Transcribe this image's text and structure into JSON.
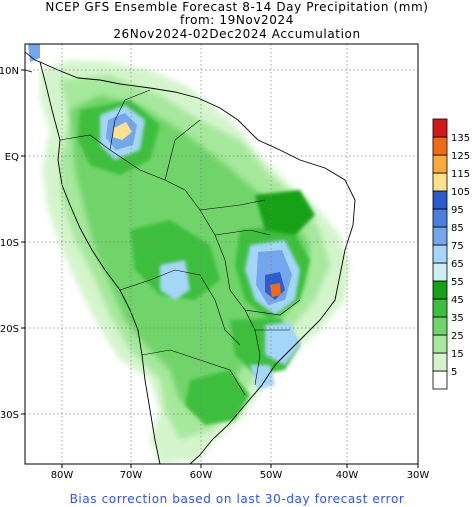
{
  "title": {
    "line1": "NCEP GFS Ensemble Forecast 8-14 Day Precipitation (mm)",
    "line2": "from: 19Nov2024",
    "line3": "26Nov2024-02Dec2024 Accumulation"
  },
  "axes": {
    "lon_labels": [
      "80W",
      "70W",
      "60W",
      "50W",
      "40W",
      "30W"
    ],
    "lat_labels": [
      "10N",
      "EQ",
      "10S",
      "20S",
      "30S"
    ]
  },
  "legend": {
    "levels": [
      "5",
      "15",
      "25",
      "35",
      "45",
      "55",
      "65",
      "75",
      "85",
      "95",
      "105",
      "115",
      "125",
      "135"
    ],
    "colors": [
      "#ffffff",
      "#d4f5cc",
      "#a6e89c",
      "#6fd46a",
      "#3cbf3c",
      "#15a215",
      "#cdeef2",
      "#a4d6f8",
      "#74a6ee",
      "#4a7fe0",
      "#2c5cd0",
      "#ffe08c",
      "#fdaa3c",
      "#f26a16",
      "#d21a1a"
    ]
  },
  "footer": "Bias correction based on last 30-day forecast error"
}
